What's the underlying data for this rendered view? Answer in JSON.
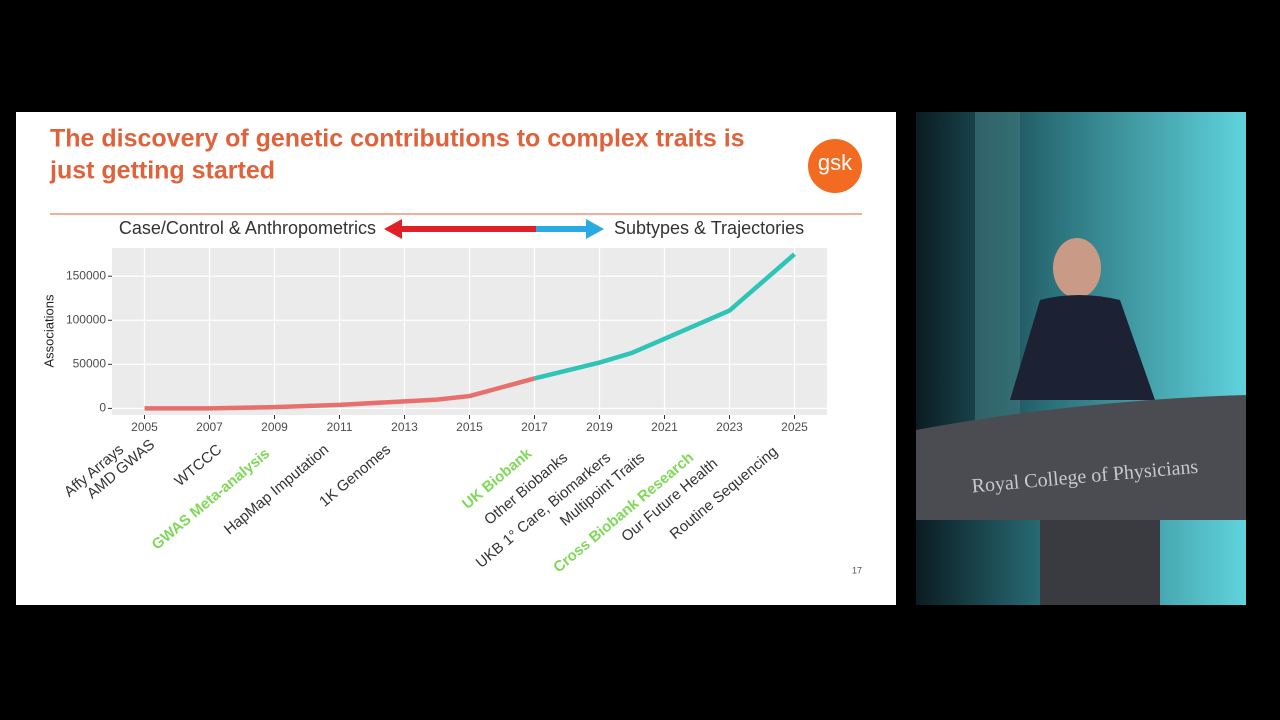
{
  "chart_data": {
    "type": "line",
    "title": [
      "The discovery of genetic contributions to complex traits is",
      "just getting started"
    ],
    "logo": "gsk",
    "left_label": "Case/Control & Anthropometrics",
    "right_label": "Subtypes & Trajectories",
    "y_label": "Associations",
    "x": [
      2005,
      2007,
      2009,
      2011,
      2013,
      2014,
      2015,
      2016,
      2017,
      2019,
      2020,
      2021,
      2023,
      2025
    ],
    "series": [
      {
        "color": "#e8706c",
        "values": [
          0,
          0,
          1500,
          4000,
          8000,
          10000,
          14000,
          24000,
          34000,
          null,
          null,
          null,
          null,
          null
        ]
      },
      {
        "color": "#2ec4b6",
        "values": [
          null,
          null,
          null,
          null,
          null,
          null,
          null,
          null,
          34000,
          52000,
          63000,
          79000,
          111000,
          175000
        ]
      }
    ],
    "xlim": [
      2004,
      2026
    ],
    "ylim": [
      -7500,
      182000
    ],
    "xticks": [
      2005,
      2007,
      2009,
      2011,
      2013,
      2015,
      2017,
      2019,
      2021,
      2023,
      2025
    ],
    "yticks": [
      0,
      50000,
      100000,
      150000
    ],
    "grid": true,
    "annotations": [
      {
        "text": "Affy Arrays",
        "color": "#333333"
      },
      {
        "text": "AMD GWAS",
        "color": "#333333"
      },
      {
        "text": "WTCCC",
        "color": "#333333"
      },
      {
        "text": "GWAS Meta-analysis",
        "color": "#7ed957"
      },
      {
        "text": "HapMap Imputation",
        "color": "#333333"
      },
      {
        "text": "1K Genomes",
        "color": "#333333"
      },
      {
        "text": "UK Biobank",
        "color": "#7ed957"
      },
      {
        "text": "Other Biobanks",
        "color": "#333333"
      },
      {
        "text": "UKB 1° Care, Biomarkers",
        "color": "#333333"
      },
      {
        "text": "Multipoint Traits",
        "color": "#333333"
      },
      {
        "text": "Cross Biobank Research",
        "color": "#7ed957"
      },
      {
        "text": "Our Future Health",
        "color": "#333333"
      },
      {
        "text": "Routine Sequencing",
        "color": "#333333"
      }
    ],
    "page_number": "17"
  },
  "room": {
    "sign": "Royal College of Physicians"
  }
}
